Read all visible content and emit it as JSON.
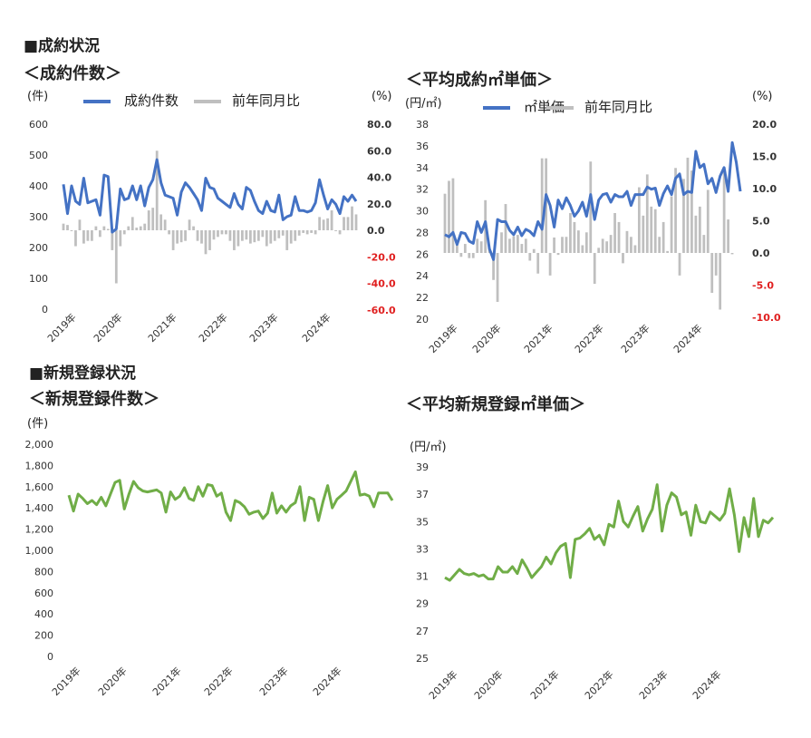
{
  "headings": {
    "section_contracts": "■成約状況",
    "section_new": "■新規登録状況",
    "chart1_title": "＜成約件数＞",
    "chart2_title": "＜平均成約㎡単価＞",
    "chart3_title": "＜新規登録件数＞",
    "chart4_title": "＜平均新規登録㎡単価＞"
  },
  "colors": {
    "line_blue": "#4472c4",
    "bar_gray": "#bfbfbf",
    "line_green": "#70ad47",
    "negative_red": "#e02020"
  },
  "chart_data": [
    {
      "type": "bar",
      "title": "＜成約件数＞",
      "left_unit": "(件)",
      "right_unit": "(%)",
      "legend": [
        "成約件数",
        "前年同月比"
      ],
      "x_labels": [
        "2019年",
        "2020年",
        "2021年",
        "2022年",
        "2023年",
        "2024年"
      ],
      "y_ticks": [
        "0",
        "100",
        "200",
        "300",
        "400",
        "500",
        "600"
      ],
      "y2_ticks": [
        "80.0",
        "60.0",
        "40.0",
        "20.0",
        "0.0",
        "-20.0",
        "-40.0",
        "-60.0"
      ],
      "ylim": [
        0,
        600
      ],
      "y2lim": [
        -60,
        80
      ],
      "series": [
        {
          "name": "成約件数",
          "type": "line",
          "values": [
            405,
            310,
            400,
            350,
            340,
            425,
            345,
            350,
            355,
            305,
            435,
            430,
            250,
            260,
            390,
            355,
            360,
            400,
            355,
            400,
            335,
            395,
            420,
            485,
            410,
            370,
            365,
            360,
            305,
            380,
            410,
            395,
            375,
            355,
            320,
            425,
            395,
            390,
            360,
            350,
            340,
            330,
            375,
            340,
            325,
            395,
            385,
            350,
            320,
            310,
            350,
            320,
            315,
            370,
            290,
            300,
            305,
            365,
            320,
            320,
            315,
            320,
            345,
            420,
            370,
            325,
            355,
            340,
            310,
            365,
            350,
            370,
            350
          ]
        },
        {
          "name": "前年同月比",
          "type": "bar",
          "values": [
            5,
            4,
            0,
            -12,
            8,
            -10,
            -8,
            -8,
            3,
            -5,
            3,
            1,
            -15,
            -40,
            -12,
            -3,
            3,
            10,
            2,
            3,
            5,
            15,
            17,
            60,
            12,
            8,
            -3,
            -15,
            -10,
            -9,
            -8,
            8,
            3,
            -8,
            -10,
            -18,
            -15,
            -7,
            -5,
            -3,
            -3,
            -8,
            -15,
            -12,
            -8,
            -7,
            -10,
            -9,
            -8,
            -5,
            -12,
            -10,
            -8,
            -6,
            -4,
            -15,
            -10,
            -8,
            -4,
            -2,
            -3,
            -2,
            -3,
            10,
            8,
            9,
            15,
            0,
            -3,
            10,
            10,
            18,
            12
          ]
        }
      ]
    },
    {
      "type": "bar",
      "title": "＜平均成約㎡単価＞",
      "left_unit": "(円/㎡)",
      "right_unit": "(%)",
      "legend": [
        "㎡単価",
        "前年同月比"
      ],
      "x_labels": [
        "2019年",
        "2020年",
        "2021年",
        "2022年",
        "2023年",
        "2024年"
      ],
      "y_ticks": [
        "20",
        "22",
        "24",
        "26",
        "28",
        "30",
        "32",
        "34",
        "36",
        "38"
      ],
      "y2_ticks": [
        "20.0",
        "15.0",
        "10.0",
        "5.0",
        "0.0",
        "-5.0",
        "-10.0"
      ],
      "ylim": [
        20,
        38
      ],
      "y2lim": [
        -10,
        20
      ],
      "series": [
        {
          "name": "㎡単価",
          "type": "line",
          "values": [
            27.8,
            27.6,
            28.0,
            26.9,
            28.0,
            27.9,
            27.2,
            27.0,
            29.0,
            28.0,
            29.0,
            26.5,
            25.5,
            29.2,
            29.0,
            29.0,
            28.2,
            27.8,
            28.5,
            27.7,
            28.3,
            28.1,
            27.7,
            29.0,
            28.3,
            31.5,
            30.5,
            28.5,
            31.0,
            30.2,
            31.2,
            30.5,
            29.5,
            30.0,
            30.8,
            29.5,
            31.5,
            29.2,
            31.0,
            31.5,
            31.6,
            30.8,
            31.5,
            31.3,
            31.3,
            31.8,
            30.5,
            31.5,
            31.5,
            31.5,
            32.2,
            32.0,
            32.1,
            30.5,
            31.6,
            32.3,
            31.5,
            33.0,
            33.4,
            31.5,
            31.8,
            31.7,
            35.5,
            34.0,
            34.3,
            32.5,
            33.0,
            31.7,
            33.2,
            34.0,
            31.8,
            36.3,
            34.5,
            31.8
          ]
        },
        {
          "name": "前年同月比",
          "type": "bar",
          "values": [
            9.2,
            11.2,
            11.6,
            1.6,
            -0.6,
            1.4,
            -0.8,
            -0.8,
            2.2,
            1.8,
            8.2,
            0.8,
            -4.2,
            -7.6,
            3.2,
            7.6,
            2.2,
            2.6,
            2.8,
            1.4,
            2.2,
            -1.2,
            0.6,
            -3.2,
            14.7,
            14.7,
            -3.5,
            2.4,
            -0.3,
            2.5,
            2.5,
            6.2,
            4.8,
            3.5,
            1.2,
            3.2,
            14.2,
            -4.8,
            0.8,
            2.2,
            1.8,
            2.8,
            6.2,
            4.8,
            -1.6,
            3.4,
            2.5,
            1.2,
            10.2,
            5.8,
            12.2,
            7.2,
            6.8,
            2.5,
            4.8,
            0.3,
            8.8,
            13.2,
            -3.5,
            11.5,
            14.8,
            12.8,
            5.8,
            7.2,
            2.8,
            9.8,
            -6.2,
            -3.5,
            -8.8,
            12.8,
            5.2,
            -0.2
          ]
        }
      ]
    },
    {
      "type": "line",
      "title": "＜新規登録件数＞",
      "left_unit": "(件)",
      "x_labels": [
        "2019年",
        "2020年",
        "2021年",
        "2022年",
        "2023年",
        "2024年"
      ],
      "y_ticks": [
        "0",
        "200",
        "400",
        "600",
        "800",
        "1,000",
        "1,200",
        "1,400",
        "1,600",
        "1,800",
        "2,000"
      ],
      "ylim": [
        0,
        2000
      ],
      "series": [
        {
          "name": "新規登録件数",
          "values": [
            1520,
            1370,
            1530,
            1490,
            1440,
            1470,
            1430,
            1500,
            1420,
            1530,
            1640,
            1660,
            1390,
            1530,
            1650,
            1590,
            1560,
            1550,
            1560,
            1570,
            1540,
            1360,
            1550,
            1480,
            1510,
            1590,
            1490,
            1470,
            1600,
            1510,
            1620,
            1610,
            1510,
            1540,
            1360,
            1280,
            1470,
            1450,
            1410,
            1340,
            1360,
            1370,
            1300,
            1350,
            1540,
            1350,
            1420,
            1360,
            1420,
            1450,
            1600,
            1280,
            1500,
            1480,
            1280,
            1460,
            1610,
            1400,
            1480,
            1520,
            1560,
            1650,
            1740,
            1520,
            1530,
            1510,
            1410,
            1540,
            1540,
            1540,
            1470
          ]
        }
      ]
    },
    {
      "type": "line",
      "title": "＜平均新規登録㎡単価＞",
      "left_unit": "(円/㎡)",
      "x_labels": [
        "2019年",
        "2020年",
        "2021年",
        "2022年",
        "2023年",
        "2024年"
      ],
      "y_ticks": [
        "25",
        "27",
        "29",
        "31",
        "33",
        "35",
        "37",
        "39"
      ],
      "ylim": [
        25,
        39
      ],
      "series": [
        {
          "name": "平均新規登録㎡単価",
          "values": [
            30.9,
            30.7,
            31.1,
            31.5,
            31.2,
            31.1,
            31.2,
            31.0,
            31.1,
            30.8,
            30.8,
            31.7,
            31.3,
            31.3,
            31.7,
            31.2,
            32.2,
            31.6,
            30.9,
            31.3,
            31.7,
            32.4,
            31.9,
            32.7,
            33.2,
            33.4,
            30.9,
            33.7,
            33.8,
            34.1,
            34.5,
            33.7,
            34.0,
            33.3,
            34.8,
            34.6,
            36.5,
            35.0,
            34.6,
            35.4,
            36.1,
            34.3,
            35.2,
            35.9,
            37.7,
            34.3,
            36.2,
            37.1,
            36.8,
            35.5,
            35.7,
            34.0,
            36.2,
            35.0,
            34.9,
            35.7,
            35.4,
            35.1,
            35.6,
            37.4,
            35.5,
            32.8,
            35.3,
            33.9,
            36.7,
            33.9,
            35.1,
            34.9,
            35.3
          ]
        }
      ]
    }
  ]
}
